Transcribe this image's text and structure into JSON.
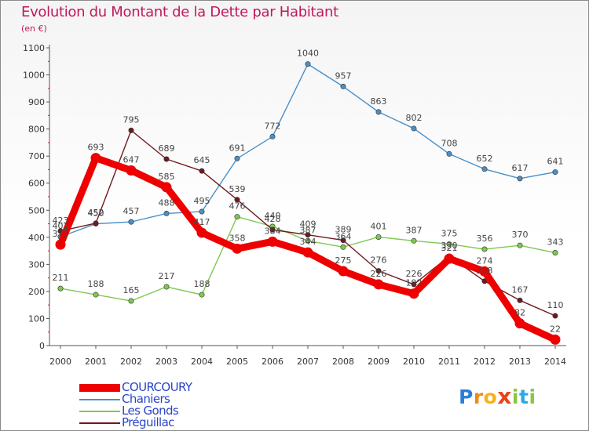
{
  "header": {
    "title": "Evolution du Montant de la Dette par Habitant",
    "subtitle": "(en €)"
  },
  "logo_text": "Proxiti",
  "chart_data": {
    "type": "line",
    "title": "Evolution du Montant de la Dette par Habitant",
    "subtitle": "(en €)",
    "categories": [
      "2000",
      "2001",
      "2002",
      "2003",
      "2004",
      "2005",
      "2006",
      "2007",
      "2008",
      "2009",
      "2010",
      "2011",
      "2012",
      "2013",
      "2014"
    ],
    "ylim": [
      0,
      1100
    ],
    "yticks": [
      0,
      100,
      200,
      300,
      400,
      500,
      600,
      700,
      800,
      900,
      1000,
      1100
    ],
    "grid": false,
    "legend_position": "bottom-left",
    "series": [
      {
        "name": "COURCOURY",
        "color": "#ee0000",
        "emphasis": true,
        "values": [
          373,
          693,
          647,
          585,
          417,
          358,
          384,
          344,
          275,
          226,
          192,
          321,
          274,
          82,
          22
        ]
      },
      {
        "name": "Chaniers",
        "color": "#4a90c8",
        "values": [
          402,
          450,
          457,
          488,
          495,
          691,
          772,
          1040,
          957,
          863,
          802,
          708,
          652,
          617,
          641
        ]
      },
      {
        "name": "Les Gonds",
        "color": "#7fc850",
        "values": [
          211,
          188,
          165,
          217,
          188,
          476,
          440,
          387,
          364,
          401,
          387,
          375,
          356,
          370,
          343
        ]
      },
      {
        "name": "Préguillac",
        "color": "#6e1a1e",
        "values": [
          423,
          452,
          795,
          689,
          645,
          539,
          428,
          409,
          389,
          276,
          226,
          330,
          238,
          167,
          110
        ]
      }
    ]
  }
}
